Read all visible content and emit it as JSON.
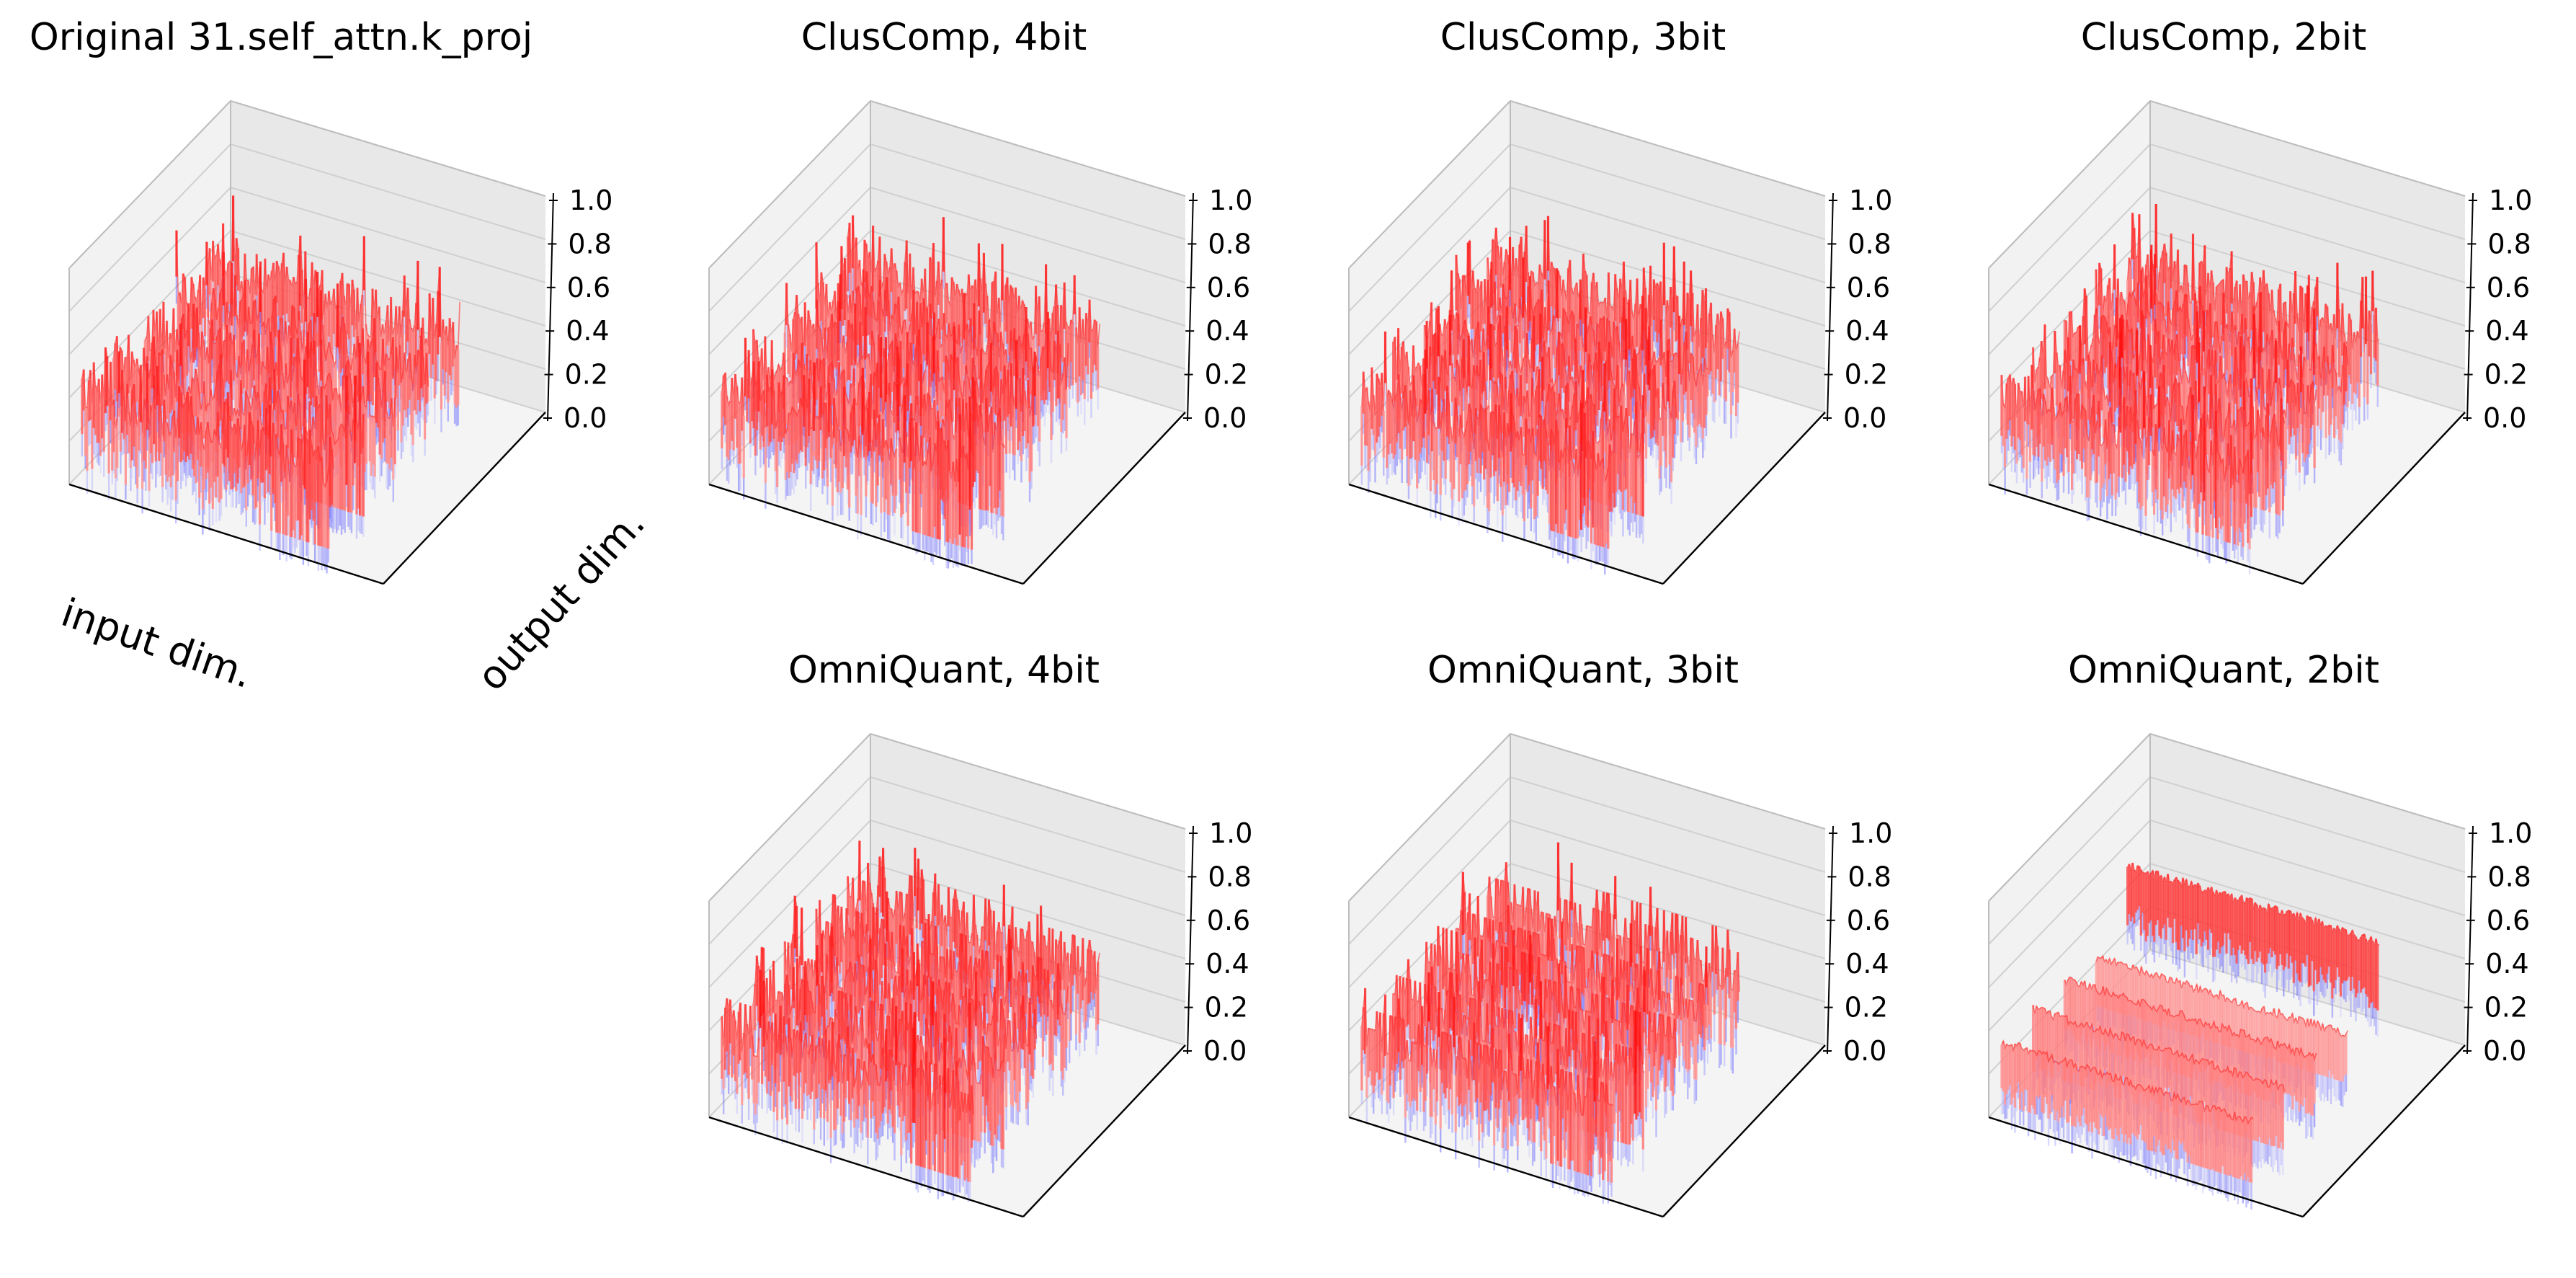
{
  "chart_data": {
    "type": "surface3d",
    "colormap": "bwr",
    "zlim": [
      0.0,
      1.0
    ],
    "zticks": [
      "0.0",
      "0.2",
      "0.4",
      "0.6",
      "0.8",
      "1.0"
    ],
    "xlabel": "input dim.",
    "ylabel": "output dim.",
    "panels": [
      {
        "id": "original",
        "title": "Original 31.self_attn.k_proj",
        "mean": 0.5,
        "noise": 0.16,
        "quant_levels": 0,
        "blue_dip": 0.55
      },
      {
        "id": "cluscomp-4bit",
        "title": "ClusComp, 4bit",
        "mean": 0.52,
        "noise": 0.16,
        "quant_levels": 0,
        "blue_dip": 0.55
      },
      {
        "id": "cluscomp-3bit",
        "title": "ClusComp, 3bit",
        "mean": 0.52,
        "noise": 0.16,
        "quant_levels": 0,
        "blue_dip": 0.5
      },
      {
        "id": "cluscomp-2bit",
        "title": "ClusComp, 2bit",
        "mean": 0.5,
        "noise": 0.15,
        "quant_levels": 0,
        "blue_dip": 0.35
      },
      {
        "id": "omniquant-4bit",
        "title": "OmniQuant, 4bit",
        "mean": 0.52,
        "noise": 0.17,
        "quant_levels": 16,
        "blue_dip": 0.6
      },
      {
        "id": "omniquant-3bit",
        "title": "OmniQuant, 3bit",
        "mean": 0.5,
        "noise": 0.16,
        "quant_levels": 8,
        "blue_dip": 0.45
      },
      {
        "id": "omniquant-2bit",
        "title": "OmniQuant, 2bit",
        "mean": 0.45,
        "noise": 0.12,
        "quant_levels": 4,
        "blue_dip": 0.3
      }
    ]
  }
}
